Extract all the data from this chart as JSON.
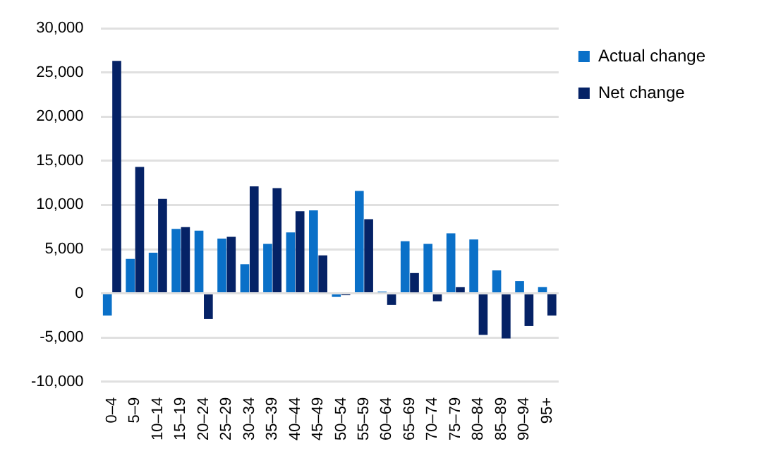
{
  "chart_data": {
    "type": "bar",
    "categories": [
      "0–4",
      "5–9",
      "10–14",
      "15–19",
      "20–24",
      "25–29",
      "30–34",
      "35–39",
      "40–44",
      "45–49",
      "50–54",
      "55–59",
      "60–64",
      "65–69",
      "70–74",
      "75–79",
      "80–84",
      "85–89",
      "90–94",
      "95+"
    ],
    "series": [
      {
        "name": "Actual change",
        "color": "#0a70c8",
        "values": [
          -2500,
          3900,
          4600,
          7300,
          7100,
          6200,
          3300,
          5600,
          6900,
          9400,
          -400,
          11600,
          200,
          5900,
          5600,
          6800,
          6100,
          2600,
          1400,
          700
        ]
      },
      {
        "name": "Net change",
        "color": "#052266",
        "values": [
          26300,
          14300,
          10700,
          7500,
          -2900,
          6400,
          12100,
          11900,
          9300,
          4300,
          -200,
          8400,
          -1300,
          2300,
          -900,
          700,
          -4700,
          -5100,
          -3700,
          -2500
        ]
      }
    ],
    "ylim": [
      -10000,
      30000
    ],
    "yticks": [
      {
        "value": -10000,
        "label": "-10,000"
      },
      {
        "value": -5000,
        "label": "-5,000"
      },
      0,
      {
        "value": 5000,
        "label": "5,000"
      },
      {
        "value": 10000,
        "label": "10,000"
      },
      {
        "value": 15000,
        "label": "15,000"
      },
      {
        "value": 20000,
        "label": "20,000"
      },
      {
        "value": 25000,
        "label": "25,000"
      },
      {
        "value": 30000,
        "label": "30,000"
      }
    ],
    "grid": "y",
    "legend": "right"
  }
}
